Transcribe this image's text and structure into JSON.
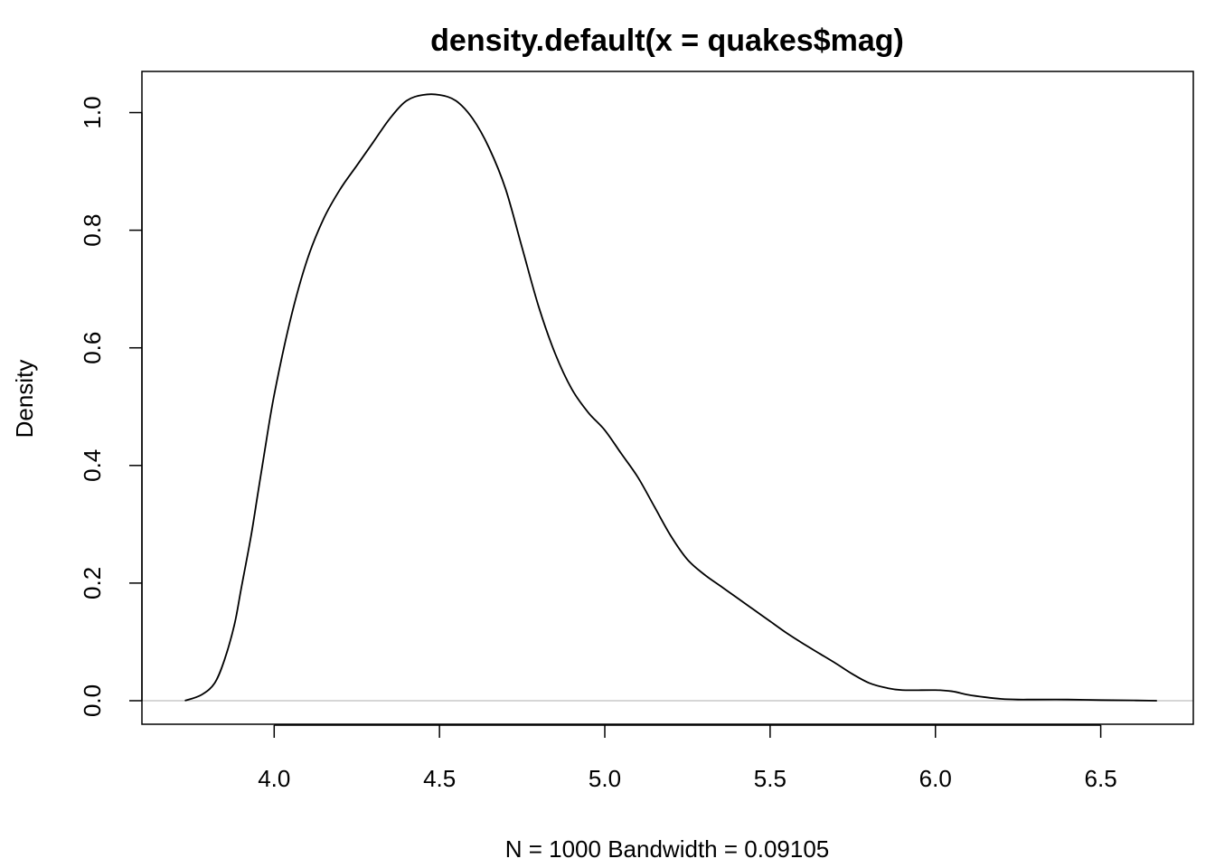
{
  "chart_data": {
    "type": "line",
    "title": "density.default(x = quakes$mag)",
    "xlabel": "N = 1000   Bandwidth = 0.09105",
    "ylabel": "Density",
    "xlim": [
      3.6,
      6.78
    ],
    "ylim": [
      -0.04,
      1.07
    ],
    "x_ticks": [
      4.0,
      4.5,
      5.0,
      5.5,
      6.0,
      6.5
    ],
    "x_tick_labels": [
      "4.0",
      "4.5",
      "5.0",
      "5.5",
      "6.0",
      "6.5"
    ],
    "y_ticks": [
      0.0,
      0.2,
      0.4,
      0.6,
      0.8,
      1.0
    ],
    "y_tick_labels": [
      "0.0",
      "0.2",
      "0.4",
      "0.6",
      "0.8",
      "1.0"
    ],
    "grid": false,
    "reference_line": {
      "y": 0,
      "color": "#bebebe"
    },
    "series": [
      {
        "color": "#000000",
        "x": [
          3.73,
          3.78,
          3.82,
          3.85,
          3.88,
          3.9,
          3.93,
          3.95,
          3.97,
          4.0,
          4.05,
          4.1,
          4.15,
          4.2,
          4.25,
          4.3,
          4.35,
          4.4,
          4.45,
          4.5,
          4.55,
          4.6,
          4.65,
          4.7,
          4.75,
          4.8,
          4.85,
          4.9,
          4.95,
          5.0,
          5.05,
          5.1,
          5.15,
          5.2,
          5.25,
          5.3,
          5.35,
          5.4,
          5.45,
          5.5,
          5.55,
          5.6,
          5.65,
          5.7,
          5.75,
          5.8,
          5.85,
          5.9,
          6.0,
          6.05,
          6.1,
          6.15,
          6.2,
          6.25,
          6.3,
          6.4,
          6.5,
          6.6,
          6.67
        ],
        "y": [
          0.0,
          0.01,
          0.03,
          0.07,
          0.13,
          0.19,
          0.28,
          0.35,
          0.42,
          0.52,
          0.65,
          0.75,
          0.82,
          0.87,
          0.91,
          0.95,
          0.99,
          1.02,
          1.03,
          1.03,
          1.02,
          0.99,
          0.94,
          0.87,
          0.77,
          0.67,
          0.59,
          0.53,
          0.49,
          0.46,
          0.42,
          0.38,
          0.33,
          0.28,
          0.24,
          0.215,
          0.195,
          0.175,
          0.155,
          0.135,
          0.115,
          0.097,
          0.08,
          0.063,
          0.045,
          0.03,
          0.022,
          0.018,
          0.018,
          0.016,
          0.01,
          0.006,
          0.003,
          0.002,
          0.002,
          0.002,
          0.001,
          0.0005,
          0.0
        ]
      }
    ]
  }
}
